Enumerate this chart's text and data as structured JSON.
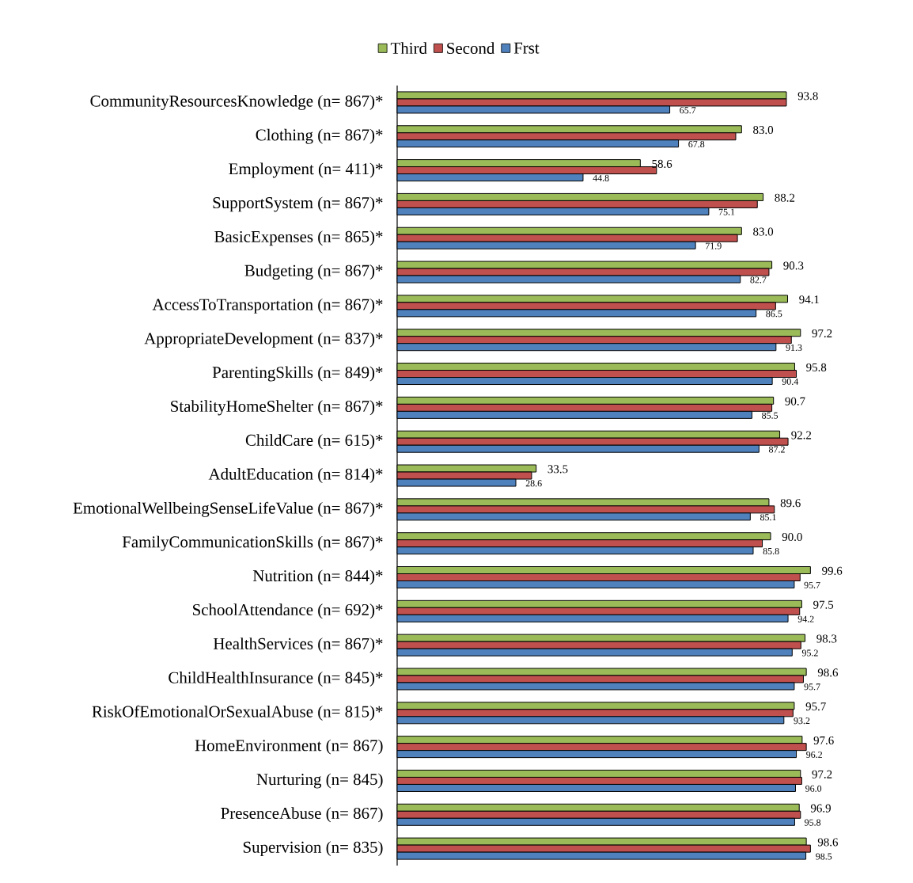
{
  "chart_data": {
    "type": "bar",
    "orientation": "horizontal",
    "legend": "top",
    "categories": [
      "CommunityResourcesKnowledge (n= 867)*",
      "Clothing (n= 867)*",
      "Employment (n= 411)*",
      "SupportSystem (n= 867)*",
      "BasicExpenses (n= 865)*",
      "Budgeting (n= 867)*",
      "AccessToTransportation (n= 867)*",
      "AppropriateDevelopment (n= 837)*",
      "ParentingSkills (n= 849)*",
      "StabilityHomeShelter (n= 867)*",
      "ChildCare (n= 615)*",
      "AdultEducation (n= 814)*",
      "EmotionalWellbeingSenseLifeValue (n= 867)*",
      "FamilyCommunicationSkills (n= 867)*",
      "Nutrition (n= 844)*",
      "SchoolAttendance (n= 692)*",
      "HealthServices (n= 867)*",
      "ChildHealthInsurance (n= 845)*",
      "RiskOfEmotionalOrSexualAbuse (n= 815)*",
      "HomeEnvironment (n= 867)",
      "Nurturing (n= 845)",
      "PresenceAbuse (n= 867)",
      "Supervision (n= 835)"
    ],
    "series": [
      {
        "name": "Third",
        "color": "#9bbb59",
        "values": [
          93.8,
          83.0,
          58.6,
          88.2,
          83.0,
          90.3,
          94.1,
          97.2,
          95.8,
          90.7,
          92.2,
          33.5,
          89.6,
          90.0,
          99.6,
          97.5,
          98.3,
          98.6,
          95.7,
          97.6,
          97.2,
          96.9,
          98.6
        ],
        "value_labels": [
          "93.8",
          "83.0",
          "58.6",
          "88.2",
          "83.0",
          "90.3",
          "94.1",
          "97.2",
          "95.8",
          "90.7",
          "92.2",
          "33.5",
          "89.6",
          "90.0",
          "99.6",
          "97.5",
          "98.3",
          "98.6",
          "95.7",
          "97.6",
          "97.2",
          "96.9",
          "98.6"
        ]
      },
      {
        "name": "Second",
        "color": "#c0504d",
        "values": [
          93.8,
          81.6,
          62.5,
          86.8,
          82.0,
          89.6,
          91.2,
          95.0,
          96.2,
          90.3,
          94.2,
          32.4,
          90.9,
          88.0,
          97.1,
          97.0,
          97.3,
          97.9,
          95.4,
          98.6,
          97.5,
          97.2,
          99.6
        ]
      },
      {
        "name": "Frst",
        "color": "#4f81bd",
        "values": [
          65.7,
          67.8,
          44.8,
          75.1,
          71.9,
          82.7,
          86.5,
          91.3,
          90.4,
          85.5,
          87.2,
          28.6,
          85.1,
          85.8,
          95.7,
          94.2,
          95.2,
          95.7,
          93.2,
          96.2,
          96.0,
          95.8,
          98.5
        ],
        "value_labels": [
          "65.7",
          "67.8",
          "44.8",
          "75.1",
          "71.9",
          "82.7",
          "86.5",
          "91.3",
          "90.4",
          "85.5",
          "87.2",
          "28.6",
          "85.1",
          "85.8",
          "95.7",
          "94.2",
          "95.2",
          "95.7",
          "93.2",
          "96.2",
          "96.0",
          "95.8",
          "98.5"
        ]
      }
    ]
  }
}
